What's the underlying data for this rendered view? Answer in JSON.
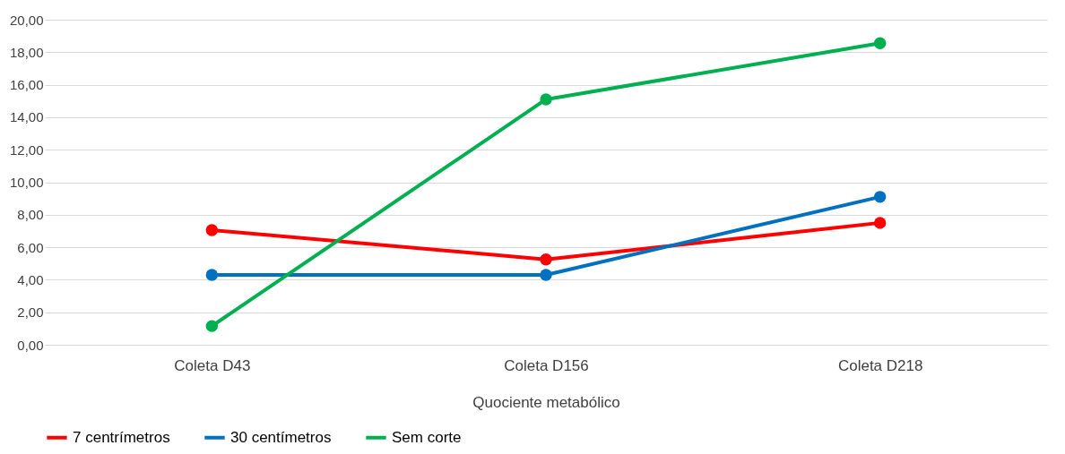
{
  "chart_data": {
    "type": "line",
    "xlabel": "Quociente metabólico",
    "categories": [
      "Coleta D43",
      "Coleta D156",
      "Coleta D218"
    ],
    "series": [
      {
        "name": "7 centrímetros",
        "color": "#ff0000",
        "values": [
          7.05,
          5.25,
          7.5
        ]
      },
      {
        "name": "30 centímetros",
        "color": "#0070c0",
        "values": [
          4.3,
          4.3,
          9.1
        ]
      },
      {
        "name": "Sem corte",
        "color": "#00b050",
        "values": [
          1.15,
          15.1,
          18.55
        ]
      }
    ],
    "ylim": [
      0,
      20
    ],
    "yticks": [
      {
        "value": 0,
        "label": "0,00"
      },
      {
        "value": 2,
        "label": "2,00"
      },
      {
        "value": 4,
        "label": "4,00"
      },
      {
        "value": 6,
        "label": "6,00"
      },
      {
        "value": 8,
        "label": "8,00"
      },
      {
        "value": 10,
        "label": "10,00"
      },
      {
        "value": 12,
        "label": "12,00"
      },
      {
        "value": 14,
        "label": "14,00"
      },
      {
        "value": 16,
        "label": "16,00"
      },
      {
        "value": 18,
        "label": "18,00"
      },
      {
        "value": 20,
        "label": "20,00"
      }
    ],
    "grid": "y",
    "legend": "bottom",
    "marker": "circle",
    "line_style": "solid"
  }
}
